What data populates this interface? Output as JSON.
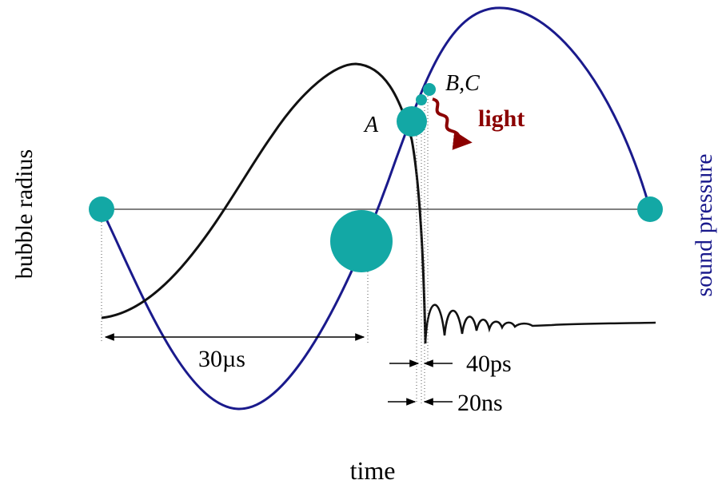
{
  "labels": {
    "y_left": "bubble radius",
    "y_right": "sound pressure",
    "x_axis": "time",
    "point_a": "A",
    "point_bc": "B,C",
    "light": "light",
    "interval_30us": "30µs",
    "interval_40ps": "40ps",
    "interval_20ns": "20ns"
  },
  "colors": {
    "pressure_curve": "#1a1a8c",
    "radius_curve": "#111111",
    "bubble": "#13a8a5",
    "light": "#8b0000",
    "axis": "#000000"
  }
}
